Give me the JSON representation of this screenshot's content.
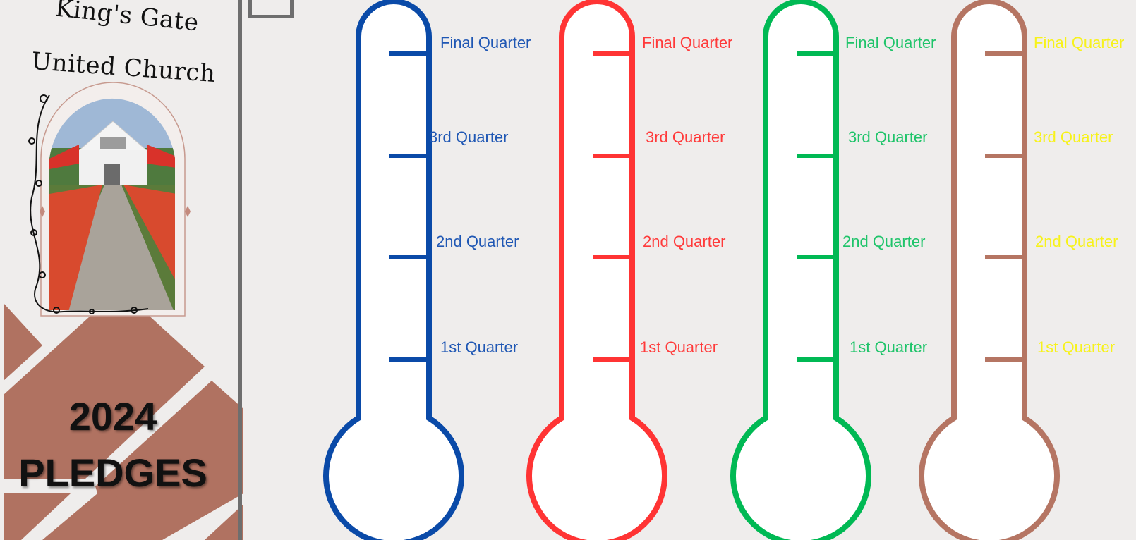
{
  "church": {
    "line1": "King's Gate",
    "line2": "United Church"
  },
  "banner": {
    "year": "2024",
    "title": "PLEDGES"
  },
  "photo": {
    "icon": "church-building-photo"
  },
  "thermometers": [
    {
      "color": "#0a4aa8",
      "label_color": "#1f57b4",
      "labels": [
        "Final Quarter",
        "3rd Quarter",
        "2nd Quarter",
        "1st Quarter"
      ]
    },
    {
      "color": "#ff3434",
      "label_color": "#ff3a3a",
      "labels": [
        "Final Quarter",
        "3rd Quarter",
        "2nd Quarter",
        "1st Quarter"
      ]
    },
    {
      "color": "#00b954",
      "label_color": "#1fc46a",
      "labels": [
        "Final Quarter",
        "3rd Quarter",
        "2nd Quarter",
        "1st Quarter"
      ]
    },
    {
      "color": "#b57563",
      "label_color": "#f7f21a",
      "labels": [
        "Final Quarter",
        "3rd Quarter",
        "2nd Quarter",
        "1st Quarter"
      ]
    }
  ],
  "colors": {
    "background": "#efedec",
    "tile": "#b07261",
    "divider": "#6e6e6e"
  }
}
